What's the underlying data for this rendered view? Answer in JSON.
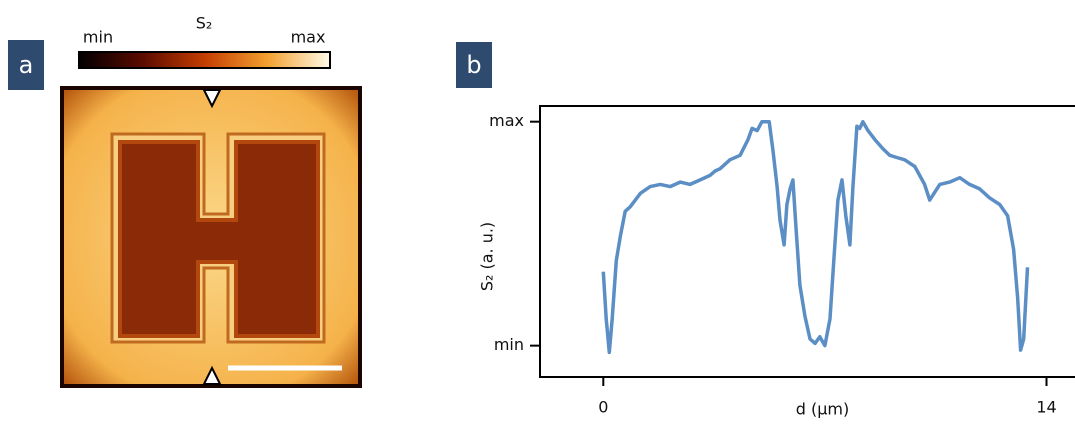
{
  "panel_a": {
    "label": "a",
    "colorbar": {
      "title": "S₂",
      "min_label": "min",
      "max_label": "max"
    }
  },
  "chart_data": {
    "type": "line",
    "panel_label": "b",
    "x_label": "d (µm)",
    "y_label": "S₂ (a. u.)",
    "xlim": [
      -2,
      14.9
    ],
    "xticks": [
      0,
      14
    ],
    "ylim": [
      -0.14,
      1.07
    ],
    "yticks": [
      {
        "value": 0,
        "label": "min"
      },
      {
        "value": 1,
        "label": "max"
      }
    ],
    "grid": false,
    "series": [
      {
        "color": "#5b8ec4",
        "x": [
          0,
          0.09,
          0.19,
          0.28,
          0.41,
          0.54,
          0.69,
          0.85,
          1.01,
          1.17,
          1.48,
          1.8,
          2.11,
          2.43,
          2.74,
          3.06,
          3.37,
          3.53,
          3.69,
          4.0,
          4.32,
          4.57,
          4.7,
          4.86,
          5.01,
          5.24,
          5.36,
          5.49,
          5.58,
          5.71,
          5.8,
          5.9,
          5.99,
          6.09,
          6.21,
          6.37,
          6.53,
          6.69,
          6.84,
          7.0,
          7.16,
          7.28,
          7.41,
          7.54,
          7.66,
          7.79,
          7.88,
          8.01,
          8.1,
          8.2,
          8.36,
          8.58,
          8.83,
          9.05,
          9.27,
          9.52,
          9.84,
          10.15,
          10.31,
          10.63,
          10.94,
          11.26,
          11.57,
          11.89,
          12.2,
          12.52,
          12.77,
          12.96,
          13.09,
          13.18,
          13.28,
          13.4
        ],
        "values": [
          0.33,
          0.12,
          -0.03,
          0.12,
          0.38,
          0.49,
          0.6,
          0.62,
          0.65,
          0.68,
          0.71,
          0.72,
          0.71,
          0.73,
          0.72,
          0.74,
          0.76,
          0.78,
          0.79,
          0.83,
          0.85,
          0.92,
          0.97,
          0.96,
          1.0,
          1.0,
          0.87,
          0.71,
          0.56,
          0.45,
          0.63,
          0.7,
          0.74,
          0.52,
          0.27,
          0.13,
          0.03,
          0.01,
          0.04,
          0.0,
          0.12,
          0.38,
          0.65,
          0.74,
          0.58,
          0.45,
          0.7,
          0.98,
          0.97,
          1.0,
          0.96,
          0.92,
          0.88,
          0.85,
          0.84,
          0.83,
          0.8,
          0.72,
          0.65,
          0.72,
          0.73,
          0.75,
          0.72,
          0.7,
          0.66,
          0.63,
          0.58,
          0.43,
          0.21,
          -0.02,
          0.03,
          0.35
        ]
      }
    ]
  }
}
